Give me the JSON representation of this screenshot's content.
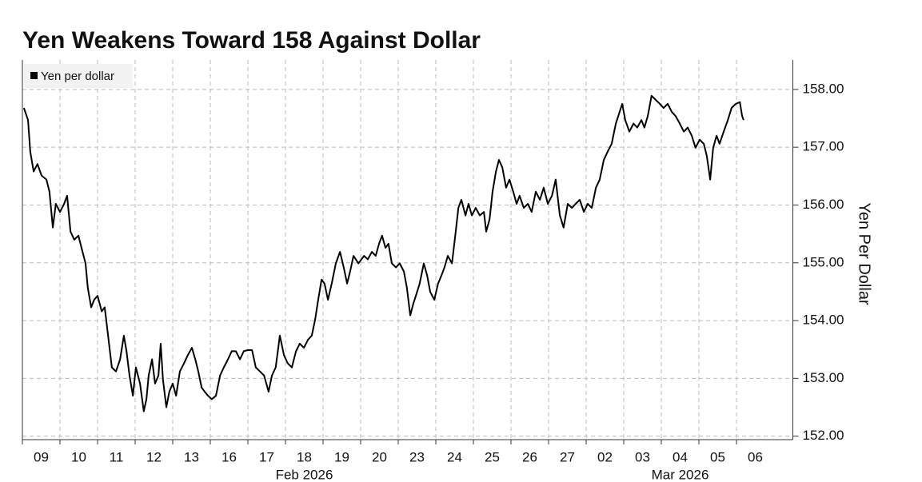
{
  "chart_data": {
    "type": "line",
    "title": "Yen Weakens Toward 158 Against Dollar",
    "y_axis_label": "Yen Per Dollar",
    "x_month_labels": [
      "Feb 2026",
      "Mar 2026"
    ],
    "legend_position": "top-left",
    "grid": true,
    "xlim": [
      0,
      20.5
    ],
    "xticks": [
      {
        "value": 0,
        "label": "09"
      },
      {
        "value": 1,
        "label": "10"
      },
      {
        "value": 2,
        "label": "11"
      },
      {
        "value": 3,
        "label": "12"
      },
      {
        "value": 4,
        "label": "13"
      },
      {
        "value": 5,
        "label": "16"
      },
      {
        "value": 6,
        "label": "17"
      },
      {
        "value": 7,
        "label": "18"
      },
      {
        "value": 8,
        "label": "19"
      },
      {
        "value": 9,
        "label": "20"
      },
      {
        "value": 10,
        "label": "23"
      },
      {
        "value": 11,
        "label": "24"
      },
      {
        "value": 12,
        "label": "25"
      },
      {
        "value": 13,
        "label": "26"
      },
      {
        "value": 14,
        "label": "27"
      },
      {
        "value": 15,
        "label": "02"
      },
      {
        "value": 16,
        "label": "03"
      },
      {
        "value": 17,
        "label": "04"
      },
      {
        "value": 18,
        "label": "05"
      },
      {
        "value": 19,
        "label": "06"
      }
    ],
    "ylim": [
      151.94,
      158.51
    ],
    "yticks": [
      {
        "value": 152,
        "label": "152.00"
      },
      {
        "value": 153,
        "label": "153.00"
      },
      {
        "value": 154,
        "label": "154.00"
      },
      {
        "value": 155,
        "label": "155.00"
      },
      {
        "value": 156,
        "label": "156.00"
      },
      {
        "value": 157,
        "label": "157.00"
      },
      {
        "value": 158,
        "label": "158.00"
      }
    ],
    "x": [
      0.04,
      0.15,
      0.21,
      0.3,
      0.4,
      0.51,
      0.64,
      0.72,
      0.81,
      0.89,
      1.0,
      1.11,
      1.19,
      1.28,
      1.38,
      1.49,
      1.6,
      1.68,
      1.74,
      1.83,
      1.91,
      2.0,
      2.11,
      2.19,
      2.28,
      2.38,
      2.49,
      2.6,
      2.7,
      2.77,
      2.85,
      2.94,
      3.02,
      3.13,
      3.23,
      3.3,
      3.36,
      3.45,
      3.53,
      3.62,
      3.68,
      3.74,
      3.83,
      3.91,
      4.0,
      4.09,
      4.19,
      4.3,
      4.4,
      4.51,
      4.6,
      4.68,
      4.77,
      4.85,
      4.94,
      5.04,
      5.15,
      5.26,
      5.36,
      5.47,
      5.57,
      5.68,
      5.79,
      5.89,
      6.0,
      6.11,
      6.21,
      6.32,
      6.43,
      6.55,
      6.64,
      6.74,
      6.85,
      6.96,
      7.06,
      7.17,
      7.28,
      7.38,
      7.49,
      7.6,
      7.7,
      7.79,
      7.87,
      7.96,
      8.04,
      8.13,
      8.23,
      8.34,
      8.45,
      8.55,
      8.64,
      8.72,
      8.81,
      8.94,
      9.09,
      9.19,
      9.3,
      9.4,
      9.49,
      9.57,
      9.66,
      9.74,
      9.83,
      9.94,
      10.04,
      10.15,
      10.23,
      10.32,
      10.4,
      10.47,
      10.57,
      10.68,
      10.77,
      10.85,
      10.96,
      11.06,
      11.15,
      11.23,
      11.32,
      11.43,
      11.53,
      11.6,
      11.68,
      11.79,
      11.87,
      11.96,
      12.06,
      12.17,
      12.28,
      12.34,
      12.43,
      12.51,
      12.6,
      12.68,
      12.77,
      12.87,
      12.96,
      13.06,
      13.15,
      13.23,
      13.34,
      13.45,
      13.55,
      13.66,
      13.77,
      13.87,
      13.98,
      14.09,
      14.19,
      14.3,
      14.4,
      14.51,
      14.62,
      14.72,
      14.83,
      14.94,
      15.04,
      15.15,
      15.26,
      15.36,
      15.47,
      15.57,
      15.68,
      15.79,
      15.89,
      15.96,
      16.04,
      16.15,
      16.26,
      16.36,
      16.47,
      16.55,
      16.64,
      16.74,
      16.85,
      16.96,
      17.06,
      17.17,
      17.28,
      17.38,
      17.49,
      17.6,
      17.7,
      17.81,
      17.91,
      18.02,
      18.13,
      18.21,
      18.3,
      18.38,
      18.47,
      18.55,
      18.66,
      18.77,
      18.87,
      18.98,
      19.09,
      19.15,
      19.19
    ],
    "series": [
      {
        "name": "Yen per dollar",
        "color": "#000000",
        "values": [
          157.68,
          157.47,
          156.92,
          156.58,
          156.71,
          156.51,
          156.44,
          156.23,
          155.61,
          156.02,
          155.88,
          156.02,
          156.16,
          155.54,
          155.4,
          155.47,
          155.19,
          154.99,
          154.57,
          154.23,
          154.36,
          154.43,
          154.16,
          154.23,
          153.74,
          153.19,
          153.12,
          153.33,
          153.74,
          153.47,
          153.05,
          152.7,
          153.19,
          152.91,
          152.43,
          152.64,
          153.05,
          153.33,
          152.91,
          153.05,
          153.6,
          152.98,
          152.5,
          152.77,
          152.91,
          152.7,
          153.12,
          153.26,
          153.4,
          153.53,
          153.33,
          153.12,
          152.84,
          152.77,
          152.7,
          152.64,
          152.7,
          153.05,
          153.19,
          153.33,
          153.47,
          153.47,
          153.33,
          153.47,
          153.49,
          153.49,
          153.19,
          153.12,
          153.05,
          152.77,
          153.05,
          153.19,
          153.74,
          153.4,
          153.26,
          153.19,
          153.47,
          153.6,
          153.53,
          153.67,
          153.74,
          154.02,
          154.36,
          154.71,
          154.64,
          154.36,
          154.64,
          154.99,
          155.19,
          154.92,
          154.64,
          154.85,
          155.12,
          154.99,
          155.12,
          155.06,
          155.19,
          155.12,
          155.33,
          155.47,
          155.26,
          155.33,
          154.99,
          154.92,
          154.99,
          154.85,
          154.57,
          154.09,
          154.29,
          154.43,
          154.64,
          154.99,
          154.78,
          154.5,
          154.36,
          154.64,
          154.78,
          154.92,
          155.12,
          154.99,
          155.54,
          155.95,
          156.09,
          155.82,
          156.02,
          155.82,
          155.95,
          155.82,
          155.88,
          155.54,
          155.75,
          156.23,
          156.58,
          156.78,
          156.65,
          156.3,
          156.44,
          156.23,
          156.02,
          156.16,
          155.95,
          156.02,
          155.88,
          156.23,
          156.09,
          156.3,
          156.02,
          156.16,
          156.44,
          155.82,
          155.61,
          156.02,
          155.95,
          156.02,
          156.09,
          155.88,
          156.02,
          155.95,
          156.3,
          156.44,
          156.78,
          156.92,
          157.06,
          157.41,
          157.61,
          157.75,
          157.47,
          157.27,
          157.41,
          157.34,
          157.47,
          157.34,
          157.54,
          157.89,
          157.82,
          157.75,
          157.68,
          157.75,
          157.61,
          157.54,
          157.41,
          157.27,
          157.34,
          157.2,
          156.99,
          157.13,
          157.06,
          156.85,
          156.44,
          156.99,
          157.2,
          157.06,
          157.27,
          157.47,
          157.68,
          157.75,
          157.78,
          157.54,
          157.47
        ]
      }
    ]
  }
}
